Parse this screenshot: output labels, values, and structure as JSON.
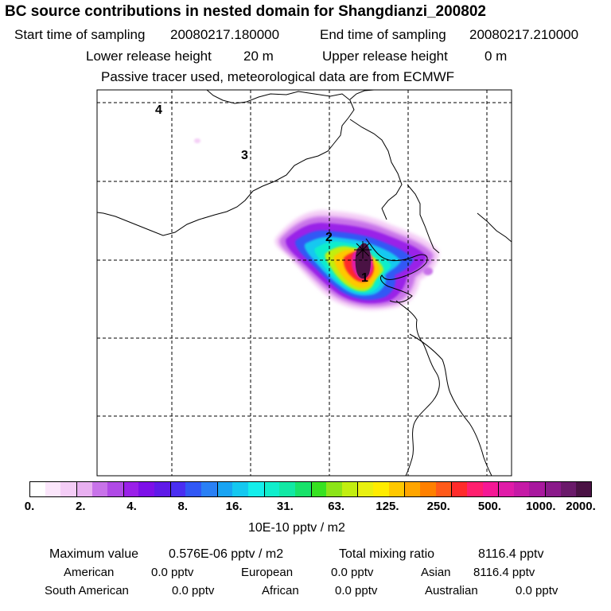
{
  "title": "BC  source contributions in nested domain for Shangdianzi_200802",
  "sampling": {
    "start_label": "Start time of sampling",
    "start_value": "20080217.180000",
    "end_label": "End time of sampling",
    "end_value": "20080217.210000"
  },
  "release": {
    "lower_label": "Lower release height",
    "lower_value": "20 m",
    "upper_label": "Upper release height",
    "upper_value": "0 m"
  },
  "note": "Passive tracer used, meteorological data are from ECMWF",
  "map_labels": [
    "4",
    "3",
    "2",
    "1"
  ],
  "colorbar": {
    "tick_labels": [
      "0.",
      "2.",
      "4.",
      "8.",
      "16.",
      "31.",
      "63.",
      "125.",
      "250.",
      "500.",
      "1000.",
      "2000."
    ],
    "colors": [
      "#ffffff",
      "#fbe6fb",
      "#f4cdf6",
      "#e8b0f0",
      "#c873e9",
      "#b04ae6",
      "#9a20e8",
      "#7d10e8",
      "#5f1ae8",
      "#4a2ef2",
      "#3158f5",
      "#2a80f5",
      "#19a4f3",
      "#15c8f0",
      "#15eeeb",
      "#10eecc",
      "#12e8a4",
      "#18e26a",
      "#37e221",
      "#8ce418",
      "#c2ee10",
      "#e8f010",
      "#ffec00",
      "#ffc800",
      "#ffa500",
      "#ff8000",
      "#ff5a1a",
      "#ff2b2b",
      "#ff1f6e",
      "#f51895",
      "#e01ca8",
      "#c51aa6",
      "#a8189e",
      "#8a1a8a",
      "#6a1a6a",
      "#4a1244"
    ],
    "units": "10E-10 pptv / m2"
  },
  "summary": {
    "max_label": "Maximum value",
    "max_value": "0.576E-06 pptv / m2",
    "total_label": "Total mixing ratio",
    "total_value": "8116.4 pptv"
  },
  "regions": [
    {
      "name": "American",
      "value": "0.0 pptv"
    },
    {
      "name": "European",
      "value": "0.0 pptv"
    },
    {
      "name": "Asian",
      "value": "8116.4 pptv"
    },
    {
      "name": "South American",
      "value": "0.0 pptv"
    },
    {
      "name": "African",
      "value": "0.0 pptv"
    },
    {
      "name": "Australian",
      "value": "0.0 pptv"
    }
  ]
}
